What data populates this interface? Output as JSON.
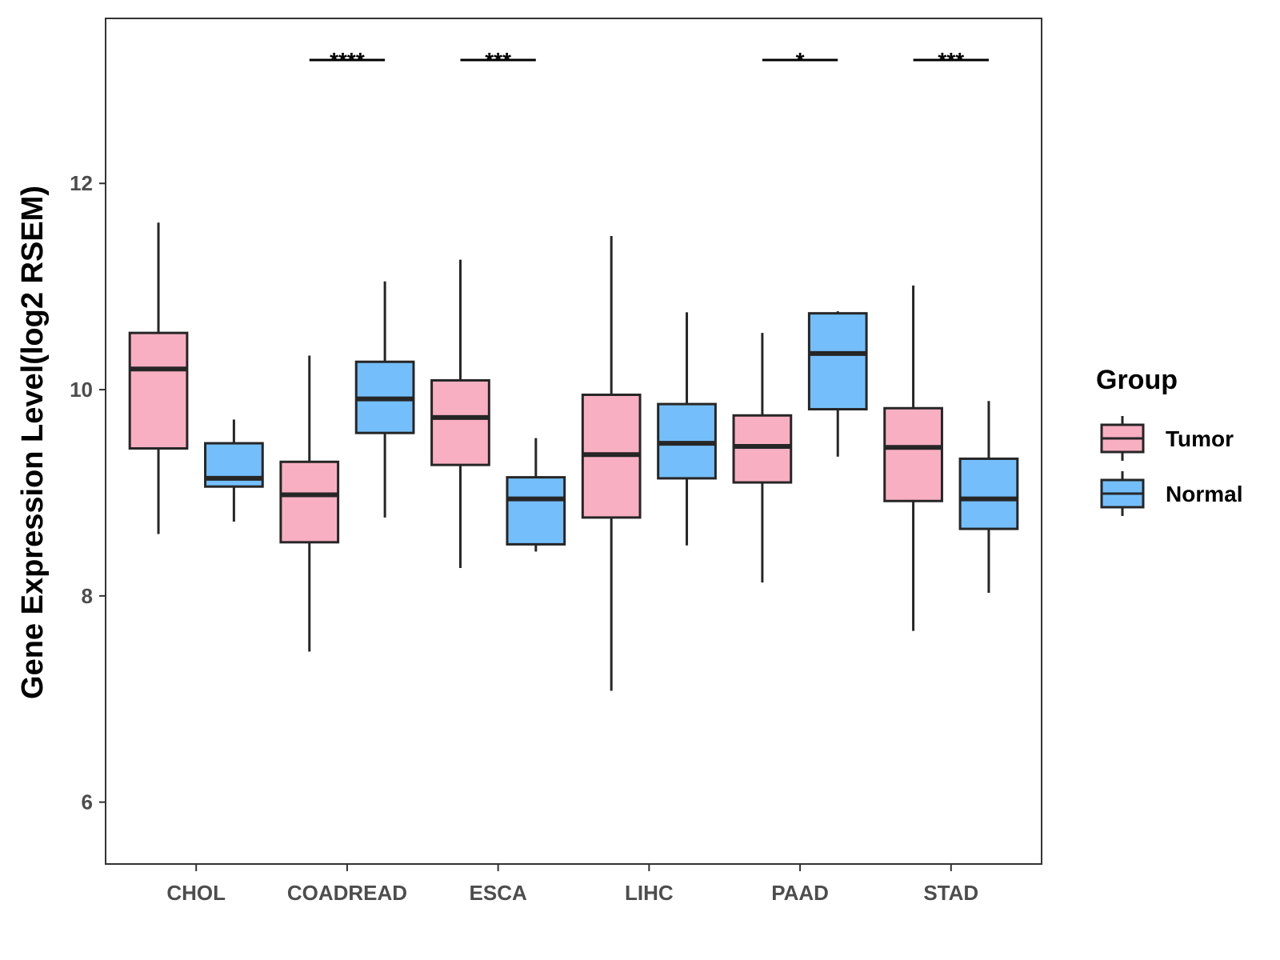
{
  "chart_data": {
    "type": "boxplot",
    "title": "",
    "xlabel": "",
    "ylabel": "Gene Expression Level(log2 RSEM)",
    "ylim": [
      5.4,
      13.6
    ],
    "yticks": [
      6,
      8,
      10,
      12
    ],
    "categories": [
      "CHOL",
      "COADREAD",
      "ESCA",
      "LIHC",
      "PAAD",
      "STAD"
    ],
    "legend": {
      "title": "Group",
      "position": "right"
    },
    "series": [
      {
        "name": "Tumor",
        "color": "#f9afc2",
        "boxes": [
          {
            "min": 8.6,
            "q1": 9.43,
            "median": 10.2,
            "q3": 10.55,
            "max": 11.62
          },
          {
            "min": 7.46,
            "q1": 8.52,
            "median": 8.98,
            "q3": 9.3,
            "max": 10.33
          },
          {
            "min": 8.27,
            "q1": 9.27,
            "median": 9.73,
            "q3": 10.09,
            "max": 11.26
          },
          {
            "min": 7.08,
            "q1": 8.76,
            "median": 9.37,
            "q3": 9.95,
            "max": 11.49
          },
          {
            "min": 8.13,
            "q1": 9.1,
            "median": 9.45,
            "q3": 9.75,
            "max": 10.55
          },
          {
            "min": 7.66,
            "q1": 8.92,
            "median": 9.44,
            "q3": 9.82,
            "max": 11.01
          }
        ]
      },
      {
        "name": "Normal",
        "color": "#74bffb",
        "boxes": [
          {
            "min": 8.72,
            "q1": 9.06,
            "median": 9.14,
            "q3": 9.48,
            "max": 9.71
          },
          {
            "min": 8.76,
            "q1": 9.58,
            "median": 9.91,
            "q3": 10.27,
            "max": 11.05
          },
          {
            "min": 8.43,
            "q1": 8.5,
            "median": 8.94,
            "q3": 9.15,
            "max": 9.53
          },
          {
            "min": 8.49,
            "q1": 9.14,
            "median": 9.48,
            "q3": 9.86,
            "max": 10.75
          },
          {
            "min": 9.35,
            "q1": 9.81,
            "median": 10.35,
            "q3": 10.74,
            "max": 10.76
          },
          {
            "min": 8.03,
            "q1": 8.65,
            "median": 8.94,
            "q3": 9.33,
            "max": 9.89
          }
        ]
      }
    ],
    "significance": [
      {
        "category": "COADREAD",
        "label": "****"
      },
      {
        "category": "ESCA",
        "label": "***"
      },
      {
        "category": "PAAD",
        "label": "*"
      },
      {
        "category": "STAD",
        "label": "***"
      }
    ]
  }
}
